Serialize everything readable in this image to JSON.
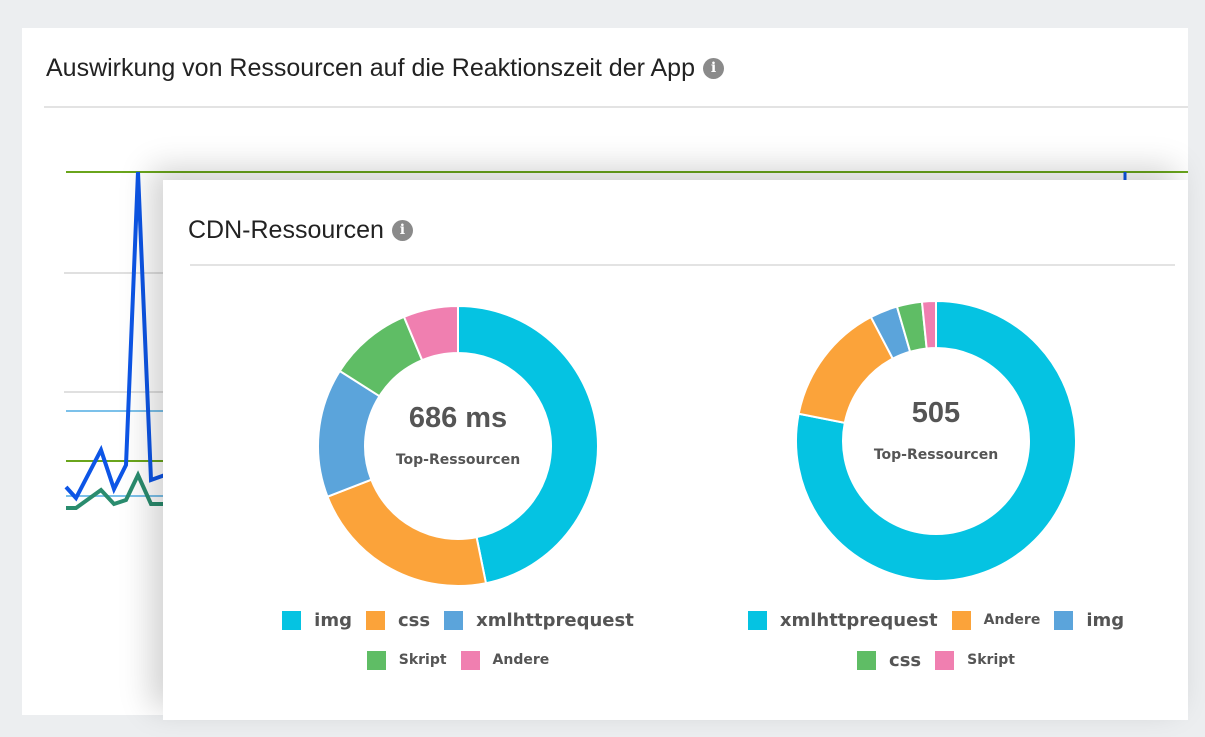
{
  "card": {
    "title": "Auswirkung von Ressourcen auf die Reaktionszeit der App",
    "info_icon": "info-icon"
  },
  "panel": {
    "title": "CDN-Ressourcen",
    "info_icon": "info-icon"
  },
  "colors": {
    "cyan": "#05c3e2",
    "orange": "#fba33a",
    "blue": "#5ba4db",
    "green": "#5fbd65",
    "pink": "#f07fb0"
  },
  "chart_data": [
    {
      "type": "pie",
      "donut": true,
      "center_value": "686 ms",
      "center_label": "Top-Ressourcen",
      "categories": [
        "img",
        "css",
        "xmlhttprequest",
        "Skript",
        "Andere"
      ],
      "values": [
        46.8,
        22.3,
        14.9,
        9.7,
        6.3
      ],
      "colors": [
        "#05c3e2",
        "#fba33a",
        "#5ba4db",
        "#5fbd65",
        "#f07fb0"
      ],
      "legend_rows": [
        [
          0,
          1,
          2
        ],
        [
          3,
          4
        ]
      ],
      "legend": "bottom"
    },
    {
      "type": "pie",
      "donut": true,
      "center_value": "505",
      "center_label": "Top-Ressourcen",
      "categories": [
        "xmlhttprequest",
        "Andere",
        "img",
        "css",
        "Skript"
      ],
      "values": [
        78.2,
        14.2,
        3.2,
        2.9,
        1.6
      ],
      "colors": [
        "#05c3e2",
        "#fba33a",
        "#5ba4db",
        "#5fbd65",
        "#f07fb0"
      ],
      "legend_rows": [
        [
          0,
          1,
          2
        ],
        [
          3,
          4
        ]
      ],
      "legend": "bottom"
    }
  ]
}
